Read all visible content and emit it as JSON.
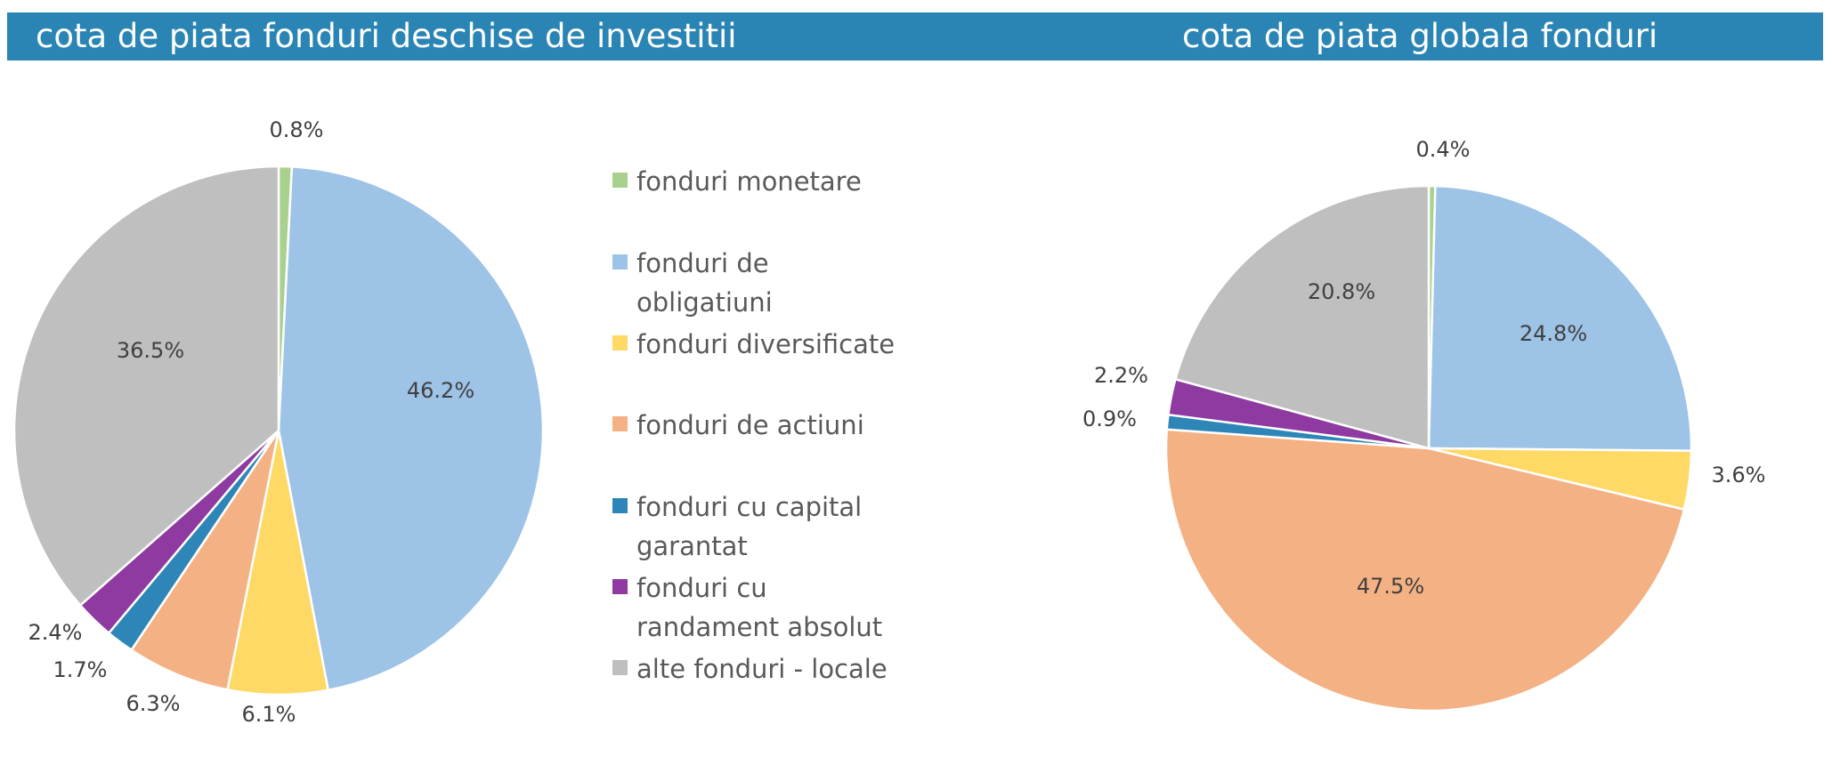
{
  "titles": {
    "left": "cota de piata fonduri deschise de investitii",
    "right": "cota de piata globala fonduri"
  },
  "colors": {
    "header": "#2a85b5",
    "fonduri_monetare": "#a9d18e",
    "fonduri_de_obligatiuni": "#9dc3e6",
    "fonduri_diversificate": "#ffd966",
    "fonduri_de_actiuni": "#f4b183",
    "fonduri_cu_capital_garantat": "#2e86b8",
    "fonduri_cu_randament_absolut": "#8e3aa0",
    "alte_fonduri_locale": "#bfbfbf"
  },
  "legend": [
    {
      "label": "fonduri monetare",
      "color": "#a9d18e"
    },
    {
      "label": "fonduri de obligatiuni",
      "color": "#9dc3e6"
    },
    {
      "label": "fonduri diversificate",
      "color": "#ffd966"
    },
    {
      "label": "fonduri de actiuni",
      "color": "#f4b183"
    },
    {
      "label": "fonduri cu capital garantat",
      "color": "#2e86b8"
    },
    {
      "label": "fonduri cu randament absolut",
      "color": "#8e3aa0"
    },
    {
      "label": "alte fonduri - locale",
      "color": "#bfbfbf"
    }
  ],
  "chart_data": [
    {
      "type": "pie",
      "title": "cota de piata fonduri deschise de investitii",
      "categories": [
        "fonduri monetare",
        "fonduri de obligatiuni",
        "fonduri diversificate",
        "fonduri de actiuni",
        "fonduri cu capital garantat",
        "fonduri cu randament absolut",
        "alte fonduri - locale"
      ],
      "values": [
        0.8,
        46.2,
        6.1,
        6.3,
        1.7,
        2.4,
        36.5
      ],
      "labels": [
        "0.8%",
        "46.2%",
        "6.1%",
        "6.3%",
        "1.7%",
        "2.4%",
        "36.5%"
      ],
      "unit": "%",
      "legend": "right"
    },
    {
      "type": "pie",
      "title": "cota de piata globala fonduri",
      "categories": [
        "fonduri monetare",
        "fonduri de obligatiuni",
        "fonduri diversificate",
        "fonduri de actiuni",
        "fonduri cu capital garantat",
        "fonduri cu randament absolut",
        "alte fonduri - locale"
      ],
      "values": [
        0.4,
        24.8,
        3.6,
        47.5,
        0.9,
        2.2,
        20.8
      ],
      "labels": [
        "0.4%",
        "24.8%",
        "3.6%",
        "47.5%",
        "0.9%",
        "2.2%",
        "20.8%"
      ],
      "unit": "%"
    }
  ]
}
